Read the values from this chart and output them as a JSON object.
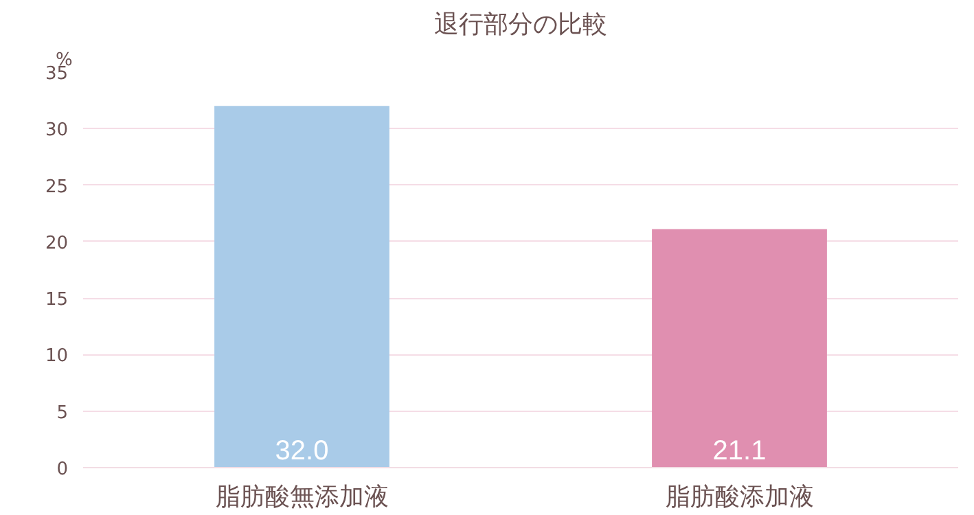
{
  "chart_data": {
    "type": "bar",
    "title": "退行部分の比較",
    "ylabel": "%",
    "categories": [
      "脂肪酸無添加液",
      "脂肪酸添加液"
    ],
    "values": [
      32.0,
      21.1
    ],
    "colors": [
      "#a9cbe8",
      "#e08fb0"
    ],
    "ylim": [
      0,
      35
    ],
    "yticks": [
      0,
      5,
      10,
      15,
      20,
      25,
      30,
      35
    ],
    "value_labels": [
      "32.0",
      "21.1"
    ],
    "grid": "y"
  }
}
